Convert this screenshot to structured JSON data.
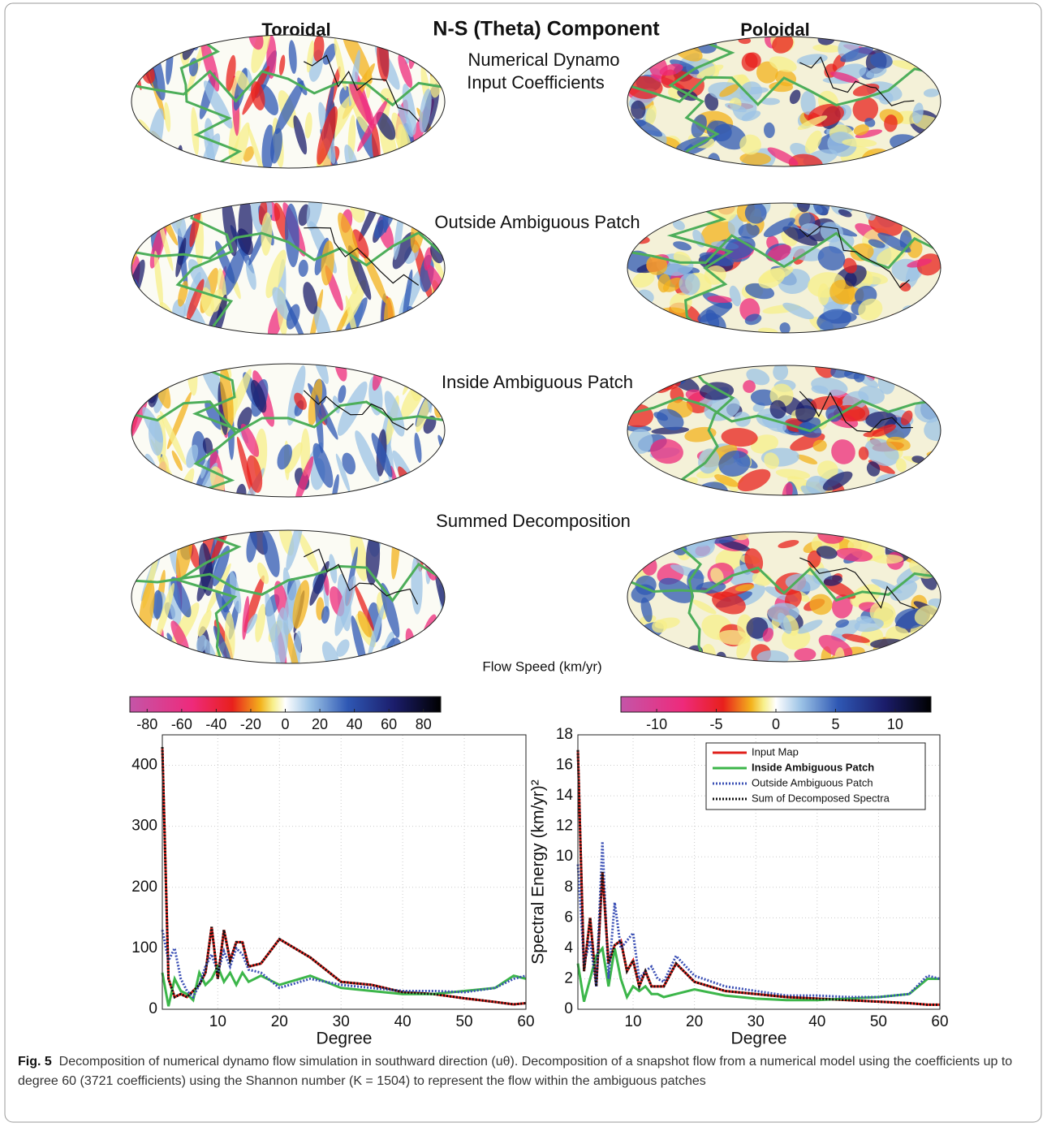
{
  "header": {
    "left": "Toroidal",
    "title": "N-S (Theta) Component",
    "right": "Poloidal"
  },
  "rows": [
    {
      "label": [
        "Numerical Dynamo",
        "Input Coefficients"
      ]
    },
    {
      "label": [
        "Outside Ambiguous Patch"
      ]
    },
    {
      "label": [
        "Inside Ambiguous Patch"
      ]
    },
    {
      "label": [
        "Summed Decomposition"
      ]
    }
  ],
  "colorbar_label": "Flow Speed (km/yr)",
  "colorbars": [
    {
      "lim": [
        -90,
        90
      ],
      "ticks": [
        -80,
        -60,
        -40,
        -20,
        0,
        20,
        40,
        60,
        80
      ]
    },
    {
      "lim": [
        -13,
        13
      ],
      "ticks": [
        -10,
        -5,
        0,
        5,
        10
      ]
    }
  ],
  "chart_data": [
    {
      "type": "line",
      "xlabel": "Degree",
      "x": [
        1,
        2,
        3,
        4,
        5,
        6,
        7,
        8,
        9,
        10,
        11,
        12,
        13,
        14,
        15,
        17,
        20,
        25,
        30,
        35,
        40,
        45,
        50,
        55,
        58,
        60
      ],
      "xlim": [
        1,
        60
      ],
      "xticks": [
        10,
        20,
        30,
        40,
        50,
        60
      ],
      "ylim": [
        0,
        450
      ],
      "yticks": [
        0,
        100,
        200,
        300,
        400
      ],
      "grid": true,
      "series": [
        {
          "color": "#e0201b",
          "style": "solid",
          "values": [
            430,
            50,
            20,
            25,
            20,
            30,
            40,
            60,
            135,
            50,
            130,
            80,
            110,
            110,
            70,
            75,
            115,
            85,
            45,
            40,
            28,
            25,
            18,
            12,
            8,
            10
          ]
        },
        {
          "color": "#3cb64a",
          "style": "solid",
          "values": [
            60,
            5,
            50,
            30,
            25,
            15,
            60,
            40,
            50,
            70,
            45,
            60,
            40,
            60,
            45,
            55,
            40,
            55,
            35,
            30,
            25,
            25,
            30,
            35,
            55,
            50
          ]
        },
        {
          "color": "#3a4fb5",
          "style": "dotted",
          "values": [
            130,
            80,
            100,
            50,
            30,
            20,
            40,
            70,
            90,
            60,
            95,
            70,
            100,
            90,
            65,
            60,
            35,
            50,
            40,
            35,
            30,
            30,
            28,
            35,
            50,
            55
          ]
        },
        {
          "color": "#111111",
          "style": "dotted",
          "values": [
            430,
            50,
            20,
            25,
            20,
            30,
            40,
            60,
            135,
            50,
            130,
            80,
            110,
            110,
            70,
            75,
            115,
            85,
            45,
            40,
            28,
            25,
            18,
            12,
            8,
            10
          ]
        }
      ]
    },
    {
      "type": "line",
      "xlabel": "Degree",
      "ylabel": "Spectral Energy  (km/yr)²",
      "x": [
        1,
        2,
        3,
        4,
        5,
        6,
        7,
        8,
        9,
        10,
        11,
        12,
        13,
        14,
        15,
        17,
        20,
        25,
        30,
        35,
        40,
        45,
        50,
        55,
        58,
        60
      ],
      "xlim": [
        1,
        60
      ],
      "xticks": [
        10,
        20,
        30,
        40,
        50,
        60
      ],
      "ylim": [
        0,
        18
      ],
      "yticks": [
        0,
        2,
        4,
        6,
        8,
        10,
        12,
        14,
        16,
        18
      ],
      "grid": true,
      "legend": "upper right",
      "series": [
        {
          "name": "Input Map",
          "color": "#e0201b",
          "style": "solid",
          "values": [
            17,
            2.5,
            6,
            1.5,
            9,
            3,
            4.2,
            4.5,
            2.5,
            3.2,
            1.5,
            2.5,
            1.5,
            1.5,
            1.5,
            3,
            1.8,
            1.2,
            1,
            0.8,
            0.7,
            0.6,
            0.5,
            0.4,
            0.3,
            0.3
          ]
        },
        {
          "name": "Inside Ambiguous Patch",
          "color": "#3cb64a",
          "style": "solid",
          "values": [
            3,
            0.5,
            2,
            3.5,
            4,
            1.5,
            4,
            2,
            0.8,
            1.5,
            1.2,
            1.5,
            1,
            1,
            0.8,
            1,
            1.3,
            0.9,
            0.7,
            0.6,
            0.6,
            0.7,
            0.8,
            1,
            2,
            2
          ]
        },
        {
          "name": "Outside Ambiguous Patch",
          "color": "#3a4fb5",
          "style": "dotted",
          "values": [
            9.5,
            3,
            4.5,
            1.5,
            11,
            2,
            7,
            4,
            4.5,
            5,
            2,
            2.5,
            2.8,
            2,
            1.8,
            3.5,
            2.2,
            1.5,
            1.2,
            0.9,
            0.9,
            0.8,
            0.8,
            1,
            2.2,
            2
          ]
        },
        {
          "name": "Sum of Decomposed Spectra",
          "color": "#111111",
          "style": "dotted",
          "values": [
            17,
            2.5,
            6,
            1.5,
            9,
            3,
            4.2,
            4.5,
            2.5,
            3.2,
            1.5,
            2.5,
            1.5,
            1.5,
            1.5,
            3,
            1.8,
            1.2,
            1,
            0.8,
            0.7,
            0.6,
            0.5,
            0.4,
            0.3,
            0.3
          ]
        }
      ]
    }
  ],
  "caption": {
    "label": "Fig. 5",
    "text": "Decomposition of numerical dynamo flow simulation in southward direction (uθ). Decomposition of a snapshot flow from a numerical model using the coefficients up to degree 60 (3721 coefficients) using the Shannon number (K = 1504) to represent the flow within the ambiguous patches"
  }
}
